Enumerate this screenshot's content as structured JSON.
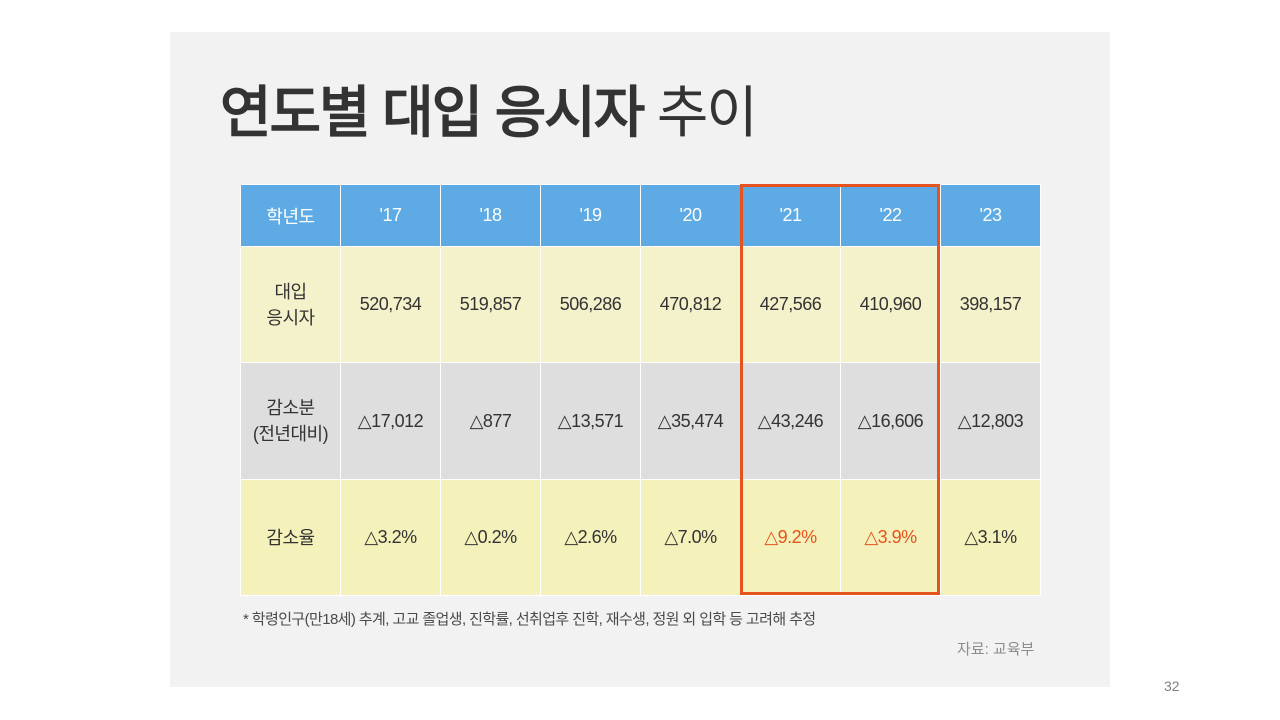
{
  "slide": {
    "title_bold": "연도별 대입 응시자",
    "title_light": " 추이",
    "page_number": "32"
  },
  "table": {
    "header_label": "학년도",
    "years": [
      "'17",
      "'18",
      "'19",
      "'20",
      "'21",
      "'22",
      "'23"
    ],
    "rows": [
      {
        "label_line1": "대입",
        "label_line2": "응시자",
        "values": [
          "520,734",
          "519,857",
          "506,286",
          "470,812",
          "427,566",
          "410,960",
          "398,157"
        ]
      },
      {
        "label_line1": "감소분",
        "label_line2": "(전년대비)",
        "values": [
          "△17,012",
          "△877",
          "△13,571",
          "△35,474",
          "△43,246",
          "△16,606",
          "△12,803"
        ]
      },
      {
        "label_line1": "감소율",
        "label_line2": "",
        "values": [
          "△3.2%",
          "△0.2%",
          "△2.6%",
          "△7.0%",
          "△9.2%",
          "△3.9%",
          "△3.1%"
        ]
      }
    ],
    "highlighted_years": [
      "'21",
      "'22"
    ],
    "colors": {
      "header_bg": "#5eaae5",
      "applicants_bg": "#f4f2ca",
      "decrease_bg": "#dedede",
      "rate_bg": "#f4f1ba",
      "highlight": "#e5541e"
    }
  },
  "footnote": "* 학령인구(만18세) 추계, 고교 졸업생, 진학률, 선취업후 진학, 재수생, 정원 외 입학 등 고려해 추정",
  "source": "자료: 교육부"
}
